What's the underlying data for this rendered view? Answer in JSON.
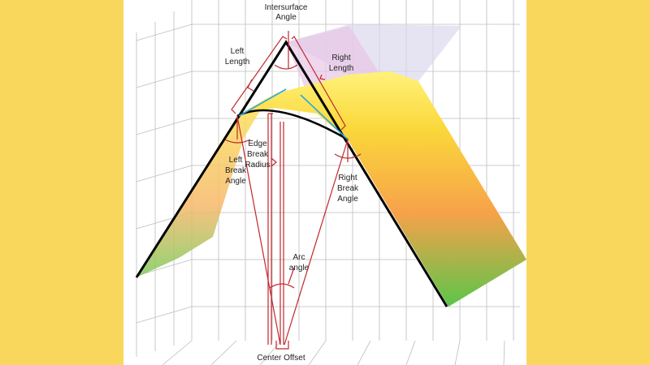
{
  "colors": {
    "background": "#F9D65C",
    "panel": "#FFFFFF",
    "annotation": "#C0272D",
    "tangent": "#29A8E0",
    "edge": "#000000"
  },
  "labels": {
    "intersurface_angle": [
      "Intersurface",
      "Angle"
    ],
    "left_length": [
      "Left",
      "Length"
    ],
    "right_length": [
      "Right",
      "Length"
    ],
    "edge_break_radius": [
      "Edge",
      "Break",
      "Radius"
    ],
    "left_break_angle": [
      "Left",
      "Break",
      "Angle"
    ],
    "right_break_angle": [
      "Right",
      "Break",
      "Angle"
    ],
    "arc_angle": [
      "Arc",
      "angle"
    ],
    "center_offset": "Center Offset"
  }
}
